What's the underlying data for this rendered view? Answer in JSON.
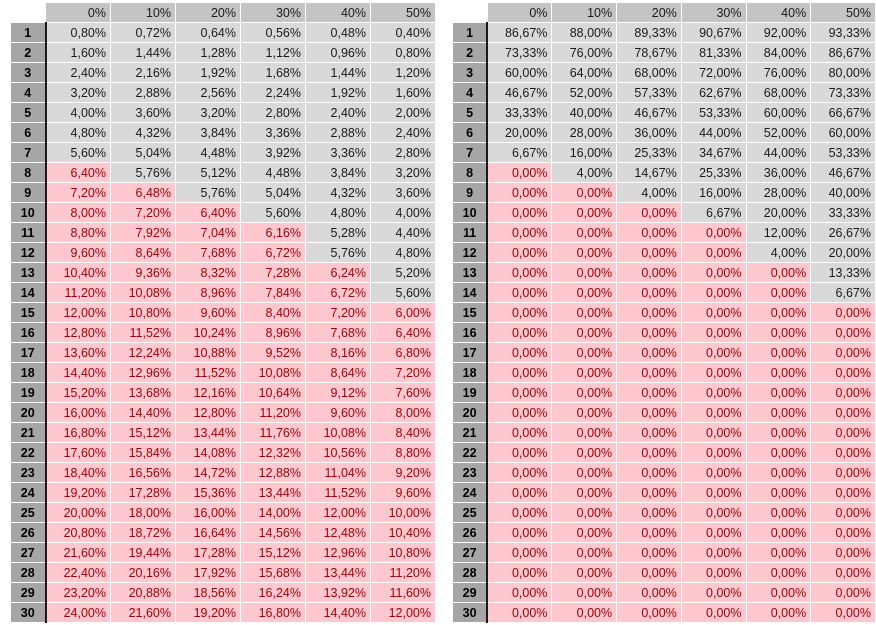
{
  "headers": [
    "0%",
    "10%",
    "20%",
    "30%",
    "40%",
    "50%"
  ],
  "row_labels": [
    "1",
    "2",
    "3",
    "4",
    "5",
    "6",
    "7",
    "8",
    "9",
    "10",
    "11",
    "12",
    "13",
    "14",
    "15",
    "16",
    "17",
    "18",
    "19",
    "20",
    "21",
    "22",
    "23",
    "24",
    "25",
    "26",
    "27",
    "28",
    "29",
    "30"
  ],
  "colors": {
    "ok_fill": "#d9d9d9",
    "bad_fill": "#ffc7ce",
    "bad_text": "#9c0006",
    "header_fill": "#c4c4c4",
    "row_header_fill": "#a6a6a6"
  },
  "left_table": {
    "rows": [
      [
        "0,80%",
        "0,72%",
        "0,64%",
        "0,56%",
        "0,48%",
        "0,40%"
      ],
      [
        "1,60%",
        "1,44%",
        "1,28%",
        "1,12%",
        "0,96%",
        "0,80%"
      ],
      [
        "2,40%",
        "2,16%",
        "1,92%",
        "1,68%",
        "1,44%",
        "1,20%"
      ],
      [
        "3,20%",
        "2,88%",
        "2,56%",
        "2,24%",
        "1,92%",
        "1,60%"
      ],
      [
        "4,00%",
        "3,60%",
        "3,20%",
        "2,80%",
        "2,40%",
        "2,00%"
      ],
      [
        "4,80%",
        "4,32%",
        "3,84%",
        "3,36%",
        "2,88%",
        "2,40%"
      ],
      [
        "5,60%",
        "5,04%",
        "4,48%",
        "3,92%",
        "3,36%",
        "2,80%"
      ],
      [
        "6,40%",
        "5,76%",
        "5,12%",
        "4,48%",
        "3,84%",
        "3,20%"
      ],
      [
        "7,20%",
        "6,48%",
        "5,76%",
        "5,04%",
        "4,32%",
        "3,60%"
      ],
      [
        "8,00%",
        "7,20%",
        "6,40%",
        "5,60%",
        "4,80%",
        "4,00%"
      ],
      [
        "8,80%",
        "7,92%",
        "7,04%",
        "6,16%",
        "5,28%",
        "4,40%"
      ],
      [
        "9,60%",
        "8,64%",
        "7,68%",
        "6,72%",
        "5,76%",
        "4,80%"
      ],
      [
        "10,40%",
        "9,36%",
        "8,32%",
        "7,28%",
        "6,24%",
        "5,20%"
      ],
      [
        "11,20%",
        "10,08%",
        "8,96%",
        "7,84%",
        "6,72%",
        "5,60%"
      ],
      [
        "12,00%",
        "10,80%",
        "9,60%",
        "8,40%",
        "7,20%",
        "6,00%"
      ],
      [
        "12,80%",
        "11,52%",
        "10,24%",
        "8,96%",
        "7,68%",
        "6,40%"
      ],
      [
        "13,60%",
        "12,24%",
        "10,88%",
        "9,52%",
        "8,16%",
        "6,80%"
      ],
      [
        "14,40%",
        "12,96%",
        "11,52%",
        "10,08%",
        "8,64%",
        "7,20%"
      ],
      [
        "15,20%",
        "13,68%",
        "12,16%",
        "10,64%",
        "9,12%",
        "7,60%"
      ],
      [
        "16,00%",
        "14,40%",
        "12,80%",
        "11,20%",
        "9,60%",
        "8,00%"
      ],
      [
        "16,80%",
        "15,12%",
        "13,44%",
        "11,76%",
        "10,08%",
        "8,40%"
      ],
      [
        "17,60%",
        "15,84%",
        "14,08%",
        "12,32%",
        "10,56%",
        "8,80%"
      ],
      [
        "18,40%",
        "16,56%",
        "14,72%",
        "12,88%",
        "11,04%",
        "9,20%"
      ],
      [
        "19,20%",
        "17,28%",
        "15,36%",
        "13,44%",
        "11,52%",
        "9,60%"
      ],
      [
        "20,00%",
        "18,00%",
        "16,00%",
        "14,00%",
        "12,00%",
        "10,00%"
      ],
      [
        "20,80%",
        "18,72%",
        "16,64%",
        "14,56%",
        "12,48%",
        "10,40%"
      ],
      [
        "21,60%",
        "19,44%",
        "17,28%",
        "15,12%",
        "12,96%",
        "10,80%"
      ],
      [
        "22,40%",
        "20,16%",
        "17,92%",
        "15,68%",
        "13,44%",
        "11,20%"
      ],
      [
        "23,20%",
        "20,88%",
        "18,56%",
        "16,24%",
        "13,92%",
        "11,60%"
      ],
      [
        "24,00%",
        "21,60%",
        "19,20%",
        "16,80%",
        "14,40%",
        "12,00%"
      ]
    ],
    "ok_rows_per_column": [
      7,
      8,
      9,
      10,
      12,
      14
    ]
  },
  "right_table": {
    "rows": [
      [
        "86,67%",
        "88,00%",
        "89,33%",
        "90,67%",
        "92,00%",
        "93,33%"
      ],
      [
        "73,33%",
        "76,00%",
        "78,67%",
        "81,33%",
        "84,00%",
        "86,67%"
      ],
      [
        "60,00%",
        "64,00%",
        "68,00%",
        "72,00%",
        "76,00%",
        "80,00%"
      ],
      [
        "46,67%",
        "52,00%",
        "57,33%",
        "62,67%",
        "68,00%",
        "73,33%"
      ],
      [
        "33,33%",
        "40,00%",
        "46,67%",
        "53,33%",
        "60,00%",
        "66,67%"
      ],
      [
        "20,00%",
        "28,00%",
        "36,00%",
        "44,00%",
        "52,00%",
        "60,00%"
      ],
      [
        "6,67%",
        "16,00%",
        "25,33%",
        "34,67%",
        "44,00%",
        "53,33%"
      ],
      [
        "0,00%",
        "4,00%",
        "14,67%",
        "25,33%",
        "36,00%",
        "46,67%"
      ],
      [
        "0,00%",
        "0,00%",
        "4,00%",
        "16,00%",
        "28,00%",
        "40,00%"
      ],
      [
        "0,00%",
        "0,00%",
        "0,00%",
        "6,67%",
        "20,00%",
        "33,33%"
      ],
      [
        "0,00%",
        "0,00%",
        "0,00%",
        "0,00%",
        "12,00%",
        "26,67%"
      ],
      [
        "0,00%",
        "0,00%",
        "0,00%",
        "0,00%",
        "4,00%",
        "20,00%"
      ],
      [
        "0,00%",
        "0,00%",
        "0,00%",
        "0,00%",
        "0,00%",
        "13,33%"
      ],
      [
        "0,00%",
        "0,00%",
        "0,00%",
        "0,00%",
        "0,00%",
        "6,67%"
      ],
      [
        "0,00%",
        "0,00%",
        "0,00%",
        "0,00%",
        "0,00%",
        "0,00%"
      ],
      [
        "0,00%",
        "0,00%",
        "0,00%",
        "0,00%",
        "0,00%",
        "0,00%"
      ],
      [
        "0,00%",
        "0,00%",
        "0,00%",
        "0,00%",
        "0,00%",
        "0,00%"
      ],
      [
        "0,00%",
        "0,00%",
        "0,00%",
        "0,00%",
        "0,00%",
        "0,00%"
      ],
      [
        "0,00%",
        "0,00%",
        "0,00%",
        "0,00%",
        "0,00%",
        "0,00%"
      ],
      [
        "0,00%",
        "0,00%",
        "0,00%",
        "0,00%",
        "0,00%",
        "0,00%"
      ],
      [
        "0,00%",
        "0,00%",
        "0,00%",
        "0,00%",
        "0,00%",
        "0,00%"
      ],
      [
        "0,00%",
        "0,00%",
        "0,00%",
        "0,00%",
        "0,00%",
        "0,00%"
      ],
      [
        "0,00%",
        "0,00%",
        "0,00%",
        "0,00%",
        "0,00%",
        "0,00%"
      ],
      [
        "0,00%",
        "0,00%",
        "0,00%",
        "0,00%",
        "0,00%",
        "0,00%"
      ],
      [
        "0,00%",
        "0,00%",
        "0,00%",
        "0,00%",
        "0,00%",
        "0,00%"
      ],
      [
        "0,00%",
        "0,00%",
        "0,00%",
        "0,00%",
        "0,00%",
        "0,00%"
      ],
      [
        "0,00%",
        "0,00%",
        "0,00%",
        "0,00%",
        "0,00%",
        "0,00%"
      ],
      [
        "0,00%",
        "0,00%",
        "0,00%",
        "0,00%",
        "0,00%",
        "0,00%"
      ],
      [
        "0,00%",
        "0,00%",
        "0,00%",
        "0,00%",
        "0,00%",
        "0,00%"
      ],
      [
        "0,00%",
        "0,00%",
        "0,00%",
        "0,00%",
        "0,00%",
        "0,00%"
      ]
    ],
    "ok_rows_per_column": [
      7,
      8,
      9,
      10,
      12,
      14
    ]
  }
}
